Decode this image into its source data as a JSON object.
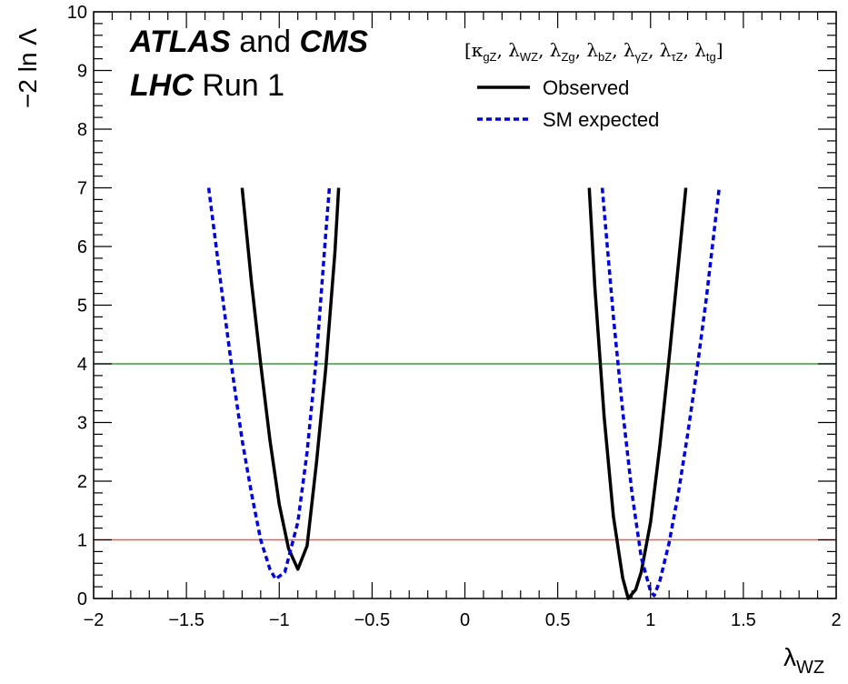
{
  "chart_data": {
    "type": "line",
    "xlabel": "λ",
    "xlabel_sub": "WZ",
    "ylabel": "−2 ln Λ",
    "xlim": [
      -2,
      2
    ],
    "ylim": [
      0,
      10
    ],
    "x_ticks": [
      {
        "value": -2,
        "label": "−2"
      },
      {
        "value": -1.5,
        "label": "−1.5"
      },
      {
        "value": -1,
        "label": "−1"
      },
      {
        "value": -0.5,
        "label": "−0.5"
      },
      {
        "value": 0,
        "label": "0"
      },
      {
        "value": 0.5,
        "label": "0.5"
      },
      {
        "value": 1,
        "label": "1"
      },
      {
        "value": 1.5,
        "label": "1.5"
      },
      {
        "value": 2,
        "label": "2"
      }
    ],
    "y_ticks": [
      {
        "value": 0,
        "label": "0"
      },
      {
        "value": 1,
        "label": "1"
      },
      {
        "value": 2,
        "label": "2"
      },
      {
        "value": 3,
        "label": "3"
      },
      {
        "value": 4,
        "label": "4"
      },
      {
        "value": 5,
        "label": "5"
      },
      {
        "value": 6,
        "label": "6"
      },
      {
        "value": 7,
        "label": "7"
      },
      {
        "value": 8,
        "label": "8"
      },
      {
        "value": 9,
        "label": "9"
      },
      {
        "value": 10,
        "label": "10"
      }
    ],
    "reference_lines": [
      {
        "y": 1,
        "color": "#e06060"
      },
      {
        "y": 4,
        "color": "#3a9a3a"
      }
    ],
    "series": [
      {
        "name": "Observed",
        "color": "#000000",
        "dash": "solid",
        "segments": [
          [
            {
              "x": -1.2,
              "y": 7.0
            },
            {
              "x": -1.15,
              "y": 5.4
            },
            {
              "x": -1.1,
              "y": 4.0
            },
            {
              "x": -1.05,
              "y": 2.7
            },
            {
              "x": -1.0,
              "y": 1.6
            },
            {
              "x": -0.95,
              "y": 0.85
            },
            {
              "x": -0.9,
              "y": 0.5
            },
            {
              "x": -0.85,
              "y": 0.9
            },
            {
              "x": -0.8,
              "y": 2.3
            },
            {
              "x": -0.75,
              "y": 3.9
            },
            {
              "x": -0.7,
              "y": 5.9
            },
            {
              "x": -0.68,
              "y": 7.0
            }
          ],
          [
            {
              "x": 0.67,
              "y": 7.0
            },
            {
              "x": 0.7,
              "y": 5.3
            },
            {
              "x": 0.75,
              "y": 3.1
            },
            {
              "x": 0.8,
              "y": 1.4
            },
            {
              "x": 0.85,
              "y": 0.35
            },
            {
              "x": 0.88,
              "y": 0.0
            },
            {
              "x": 0.92,
              "y": 0.15
            },
            {
              "x": 0.95,
              "y": 0.45
            },
            {
              "x": 1.0,
              "y": 1.3
            },
            {
              "x": 1.05,
              "y": 2.6
            },
            {
              "x": 1.1,
              "y": 4.1
            },
            {
              "x": 1.15,
              "y": 5.7
            },
            {
              "x": 1.19,
              "y": 7.0
            }
          ]
        ]
      },
      {
        "name": "SM expected",
        "color": "#0000dd",
        "dash": "dashed",
        "segments": [
          [
            {
              "x": -1.38,
              "y": 7.0
            },
            {
              "x": -1.3,
              "y": 5.0
            },
            {
              "x": -1.25,
              "y": 3.8
            },
            {
              "x": -1.2,
              "y": 2.7
            },
            {
              "x": -1.15,
              "y": 1.8
            },
            {
              "x": -1.1,
              "y": 1.0
            },
            {
              "x": -1.05,
              "y": 0.5
            },
            {
              "x": -1.02,
              "y": 0.33
            },
            {
              "x": -0.97,
              "y": 0.45
            },
            {
              "x": -0.9,
              "y": 1.3
            },
            {
              "x": -0.85,
              "y": 2.5
            },
            {
              "x": -0.8,
              "y": 4.1
            },
            {
              "x": -0.75,
              "y": 6.2
            },
            {
              "x": -0.73,
              "y": 7.0
            }
          ],
          [
            {
              "x": 0.74,
              "y": 7.0
            },
            {
              "x": 0.8,
              "y": 4.8
            },
            {
              "x": 0.85,
              "y": 3.2
            },
            {
              "x": 0.9,
              "y": 1.8
            },
            {
              "x": 0.95,
              "y": 0.7
            },
            {
              "x": 1.0,
              "y": 0.12
            },
            {
              "x": 1.02,
              "y": 0.05
            },
            {
              "x": 1.05,
              "y": 0.3
            },
            {
              "x": 1.1,
              "y": 0.95
            },
            {
              "x": 1.15,
              "y": 1.8
            },
            {
              "x": 1.2,
              "y": 2.8
            },
            {
              "x": 1.25,
              "y": 3.9
            },
            {
              "x": 1.3,
              "y": 5.1
            },
            {
              "x": 1.37,
              "y": 7.0
            }
          ]
        ]
      }
    ],
    "legend": {
      "placement": "top-right",
      "header": [
        {
          "text": "[κ",
          "sub": "gZ"
        },
        {
          "text": ", λ",
          "sub": "WZ"
        },
        {
          "text": ", λ",
          "sub": "Zg"
        },
        {
          "text": ", λ",
          "sub": "bZ"
        },
        {
          "text": ", λ",
          "sub": "γZ"
        },
        {
          "text": ", λ",
          "sub": "τZ"
        },
        {
          "text": ", λ",
          "sub": "tg"
        },
        {
          "text": "]",
          "sub": ""
        }
      ],
      "entries": [
        "Observed",
        "SM expected"
      ]
    },
    "experiment_label": {
      "line1_bold_a": "ATLAS",
      "line1_normal": " and ",
      "line1_bold_b": "CMS",
      "line2_bold": "LHC",
      "line2_normal": " Run 1"
    }
  }
}
